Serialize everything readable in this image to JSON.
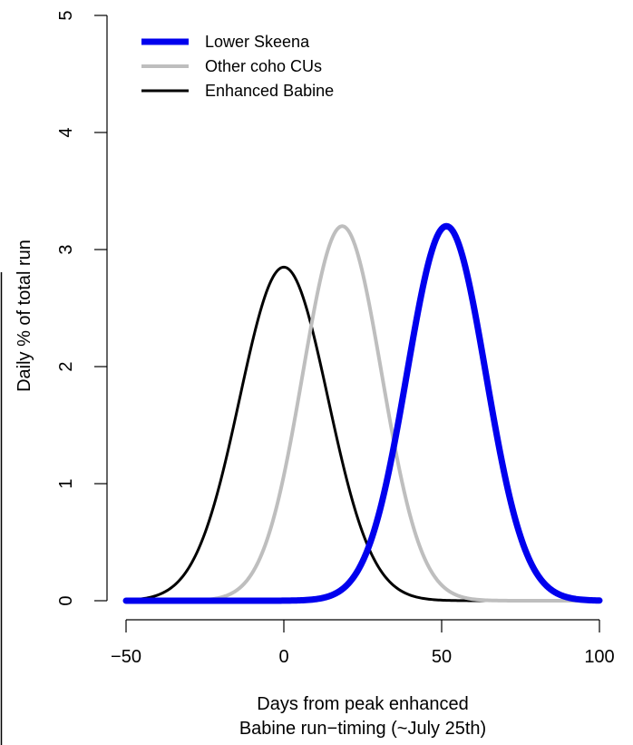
{
  "chart_data": {
    "type": "line",
    "xlabel": [
      "Days from peak enhanced",
      "Babine run−timing (~July 25th)"
    ],
    "ylabel": "Daily % of total run",
    "xlim": [
      -50,
      100
    ],
    "ylim": [
      0,
      5
    ],
    "x_ticks": [
      -50,
      0,
      50,
      100
    ],
    "x_tick_labels": [
      "−50",
      "0",
      "50",
      "100"
    ],
    "y_ticks": [
      0,
      1,
      2,
      3,
      4,
      5
    ],
    "y_tick_labels": [
      "0",
      "1",
      "2",
      "3",
      "4",
      "5"
    ],
    "grid": false,
    "legend_position": "top-left",
    "series": [
      {
        "name": "Lower Skeena",
        "color": "#0000ee",
        "distribution": "normal",
        "mean": 51.5,
        "sd": 12.5,
        "peak": 3.2
      },
      {
        "name": "Other coho CUs",
        "color": "#bebebe",
        "distribution": "normal",
        "mean": 18.5,
        "sd": 12.5,
        "peak": 3.2
      },
      {
        "name": "Enhanced Babine",
        "color": "#000000",
        "distribution": "normal",
        "mean": 0,
        "sd": 14,
        "peak": 2.85
      }
    ]
  }
}
